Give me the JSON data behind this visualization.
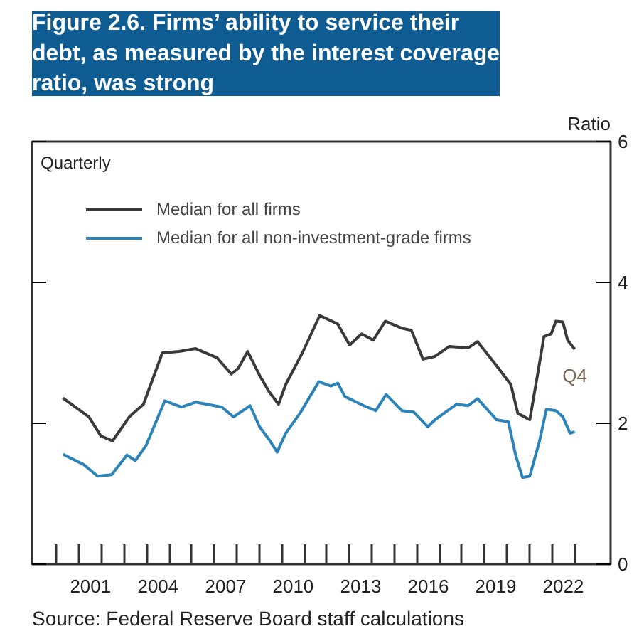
{
  "chart_data": {
    "type": "line",
    "title": "Figure 2.6. Firms’ ability to service their debt, as measured by the interest coverage ratio, was strong",
    "subtitle": "Quarterly",
    "ylabel": "Ratio",
    "annotations": [
      {
        "text": "Q4",
        "x": 2023.01,
        "y": 3.05
      },
      "Source: Federal Reserve Board staff calculations"
    ],
    "xlim": [
      1998.9,
      2024.6
    ],
    "ylim": [
      0,
      6
    ],
    "yticks": [
      0,
      2,
      4,
      6
    ],
    "xticks": [
      {
        "value": 2000,
        "label": null
      },
      {
        "value": 2001,
        "label": null
      },
      {
        "value": 2001.5,
        "label": "2001"
      },
      {
        "value": 2002,
        "label": null
      },
      {
        "value": 2003,
        "label": null
      },
      {
        "value": 2004,
        "label": null
      },
      {
        "value": 2004.5,
        "label": "2004"
      },
      {
        "value": 2005,
        "label": null
      },
      {
        "value": 2006,
        "label": null
      },
      {
        "value": 2007,
        "label": null
      },
      {
        "value": 2007.5,
        "label": "2007"
      },
      {
        "value": 2008,
        "label": null
      },
      {
        "value": 2009,
        "label": null
      },
      {
        "value": 2010,
        "label": null
      },
      {
        "value": 2010.5,
        "label": "2010"
      },
      {
        "value": 2011,
        "label": null
      },
      {
        "value": 2012,
        "label": null
      },
      {
        "value": 2013,
        "label": null
      },
      {
        "value": 2013.5,
        "label": "2013"
      },
      {
        "value": 2014,
        "label": null
      },
      {
        "value": 2015,
        "label": null
      },
      {
        "value": 2016,
        "label": null
      },
      {
        "value": 2016.5,
        "label": "2016"
      },
      {
        "value": 2017,
        "label": null
      },
      {
        "value": 2018,
        "label": null
      },
      {
        "value": 2019,
        "label": null
      },
      {
        "value": 2019.5,
        "label": "2019"
      },
      {
        "value": 2020,
        "label": null
      },
      {
        "value": 2021,
        "label": null
      },
      {
        "value": 2022,
        "label": null
      },
      {
        "value": 2022.5,
        "label": "2022"
      },
      {
        "value": 2023,
        "label": null
      }
    ],
    "grid": false,
    "legend": "top left",
    "line_style": "solid",
    "marker": "none",
    "series": [
      {
        "name": "Median for all firms",
        "color": "#3a3a3a",
        "x": [
          2000.27,
          2001.43,
          2001.96,
          2002.48,
          2003.22,
          2003.85,
          2004.69,
          2005.43,
          2006.17,
          2007.12,
          2007.75,
          2008.06,
          2008.48,
          2009.01,
          2009.43,
          2009.85,
          2010.17,
          2010.91,
          2011.68,
          2012.48,
          2013.01,
          2013.54,
          2014.06,
          2014.59,
          2015.33,
          2015.75,
          2016.27,
          2016.8,
          2017.43,
          2018.27,
          2018.69,
          2019.43,
          2020.17,
          2020.48,
          2021.01,
          2021.33,
          2021.64,
          2021.96,
          2022.17,
          2022.48,
          2022.69,
          2023.01
        ],
        "values": [
          2.36,
          2.09,
          1.82,
          1.75,
          2.09,
          2.27,
          3.0,
          3.02,
          3.06,
          2.93,
          2.7,
          2.78,
          3.02,
          2.68,
          2.45,
          2.27,
          2.55,
          3.0,
          3.53,
          3.41,
          3.11,
          3.27,
          3.18,
          3.45,
          3.35,
          3.32,
          2.91,
          2.95,
          3.09,
          3.07,
          3.16,
          2.86,
          2.55,
          2.14,
          2.05,
          2.64,
          3.23,
          3.27,
          3.45,
          3.44,
          3.18,
          3.05
        ]
      },
      {
        "name": "Median for all non-investment-grade firms",
        "color": "#2b83b8",
        "x": [
          2000.27,
          2001.22,
          2001.81,
          2002.44,
          2003.12,
          2003.49,
          2003.96,
          2004.8,
          2005.54,
          2006.17,
          2007.33,
          2007.85,
          2008.59,
          2009.01,
          2009.43,
          2009.79,
          2010.17,
          2010.8,
          2011.64,
          2012.17,
          2012.48,
          2012.8,
          2013.64,
          2014.17,
          2014.63,
          2015.33,
          2015.85,
          2016.48,
          2016.8,
          2017.75,
          2018.27,
          2018.69,
          2019.54,
          2020.06,
          2020.38,
          2020.69,
          2021.01,
          2021.43,
          2021.75,
          2022.17,
          2022.48,
          2022.8,
          2023.01
        ],
        "values": [
          1.56,
          1.41,
          1.25,
          1.27,
          1.55,
          1.47,
          1.68,
          2.32,
          2.23,
          2.3,
          2.23,
          2.09,
          2.25,
          1.95,
          1.77,
          1.59,
          1.86,
          2.14,
          2.59,
          2.53,
          2.57,
          2.38,
          2.25,
          2.18,
          2.41,
          2.18,
          2.16,
          1.95,
          2.05,
          2.27,
          2.25,
          2.35,
          2.05,
          2.02,
          1.55,
          1.23,
          1.25,
          1.73,
          2.2,
          2.18,
          2.09,
          1.86,
          1.88
        ]
      }
    ]
  }
}
